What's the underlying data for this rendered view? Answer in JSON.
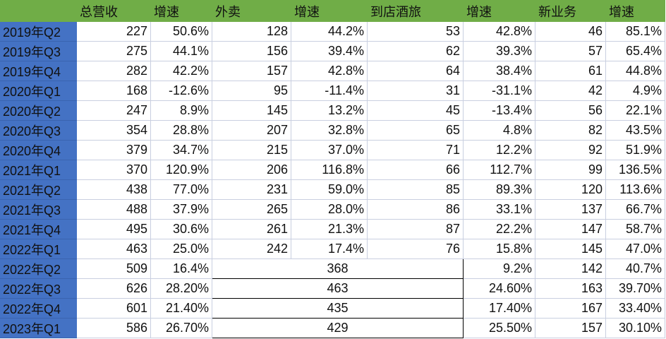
{
  "colors": {
    "header_bg": "#70ad47",
    "quarter_bg": "#4472c4"
  },
  "headers": [
    "",
    "总营收",
    "增速",
    "外卖",
    "增速",
    "到店酒旅",
    "增速",
    "新业务",
    "增速"
  ],
  "rows": [
    [
      "2019年Q2",
      "227",
      "50.6%",
      "128",
      "44.2%",
      "53",
      "42.8%",
      "46",
      "85.1%"
    ],
    [
      "2019年Q3",
      "275",
      "44.1%",
      "156",
      "39.4%",
      "62",
      "39.3%",
      "57",
      "65.4%"
    ],
    [
      "2019年Q4",
      "282",
      "42.2%",
      "157",
      "42.8%",
      "64",
      "38.4%",
      "61",
      "44.8%"
    ],
    [
      "2020年Q1",
      "168",
      "-12.6%",
      "95",
      "-11.4%",
      "31",
      "-31.1%",
      "42",
      "4.9%"
    ],
    [
      "2020年Q2",
      "247",
      "8.9%",
      "145",
      "13.2%",
      "45",
      "-13.4%",
      "56",
      "22.1%"
    ],
    [
      "2020年Q3",
      "354",
      "28.8%",
      "207",
      "32.8%",
      "65",
      "4.8%",
      "82",
      "43.5%"
    ],
    [
      "2020年Q4",
      "379",
      "34.7%",
      "215",
      "37.0%",
      "71",
      "12.2%",
      "92",
      "51.9%"
    ],
    [
      "2021年Q1",
      "370",
      "120.9%",
      "206",
      "116.8%",
      "66",
      "112.7%",
      "99",
      "136.5%"
    ],
    [
      "2021年Q2",
      "438",
      "77.0%",
      "231",
      "59.0%",
      "85",
      "89.3%",
      "120",
      "113.6%"
    ],
    [
      "2021年Q3",
      "488",
      "37.9%",
      "265",
      "28.0%",
      "86",
      "33.1%",
      "137",
      "66.7%"
    ],
    [
      "2021年Q4",
      "495",
      "30.6%",
      "261",
      "21.3%",
      "87",
      "22.2%",
      "147",
      "58.7%"
    ],
    [
      "2022年Q1",
      "463",
      "25.0%",
      "242",
      "17.4%",
      "76",
      "15.8%",
      "145",
      "47.0%"
    ]
  ],
  "merged_rows": [
    [
      "2022年Q2",
      "509",
      "16.4%",
      "368",
      "9.2%",
      "142",
      "40.7%"
    ],
    [
      "2022年Q3",
      "626",
      "28.20%",
      "463",
      "24.60%",
      "163",
      "39.70%"
    ],
    [
      "2022年Q4",
      "601",
      "21.40%",
      "435",
      "17.40%",
      "167",
      "33.40%"
    ],
    [
      "2023年Q1",
      "586",
      "26.70%",
      "429",
      "25.50%",
      "157",
      "30.10%"
    ]
  ]
}
